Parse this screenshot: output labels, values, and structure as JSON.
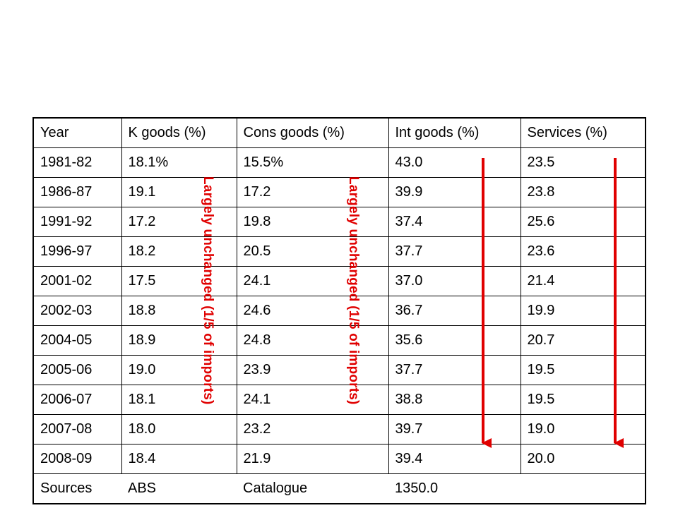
{
  "table": {
    "headers": [
      "Year",
      "K goods (%)",
      "Cons goods (%)",
      "Int goods (%)",
      "Services (%)"
    ],
    "rows": [
      [
        "1981-82",
        "18.1%",
        "15.5%",
        "43.0",
        "23.5"
      ],
      [
        "1986-87",
        "19.1",
        "17.2",
        "39.9",
        "23.8"
      ],
      [
        "1991-92",
        "17.2",
        "19.8",
        "37.4",
        "25.6"
      ],
      [
        "1996-97",
        "18.2",
        "20.5",
        "37.7",
        "23.6"
      ],
      [
        "2001-02",
        "17.5",
        "24.1",
        "37.0",
        "21.4"
      ],
      [
        "2002-03",
        "18.8",
        "24.6",
        "36.7",
        "19.9"
      ],
      [
        "2004-05",
        "18.9",
        "24.8",
        "35.6",
        "20.7"
      ],
      [
        "2005-06",
        "19.0",
        "23.9",
        "37.7",
        "19.5"
      ],
      [
        "2006-07",
        "18.1",
        "24.1",
        "38.8",
        "19.5"
      ],
      [
        "2007-08",
        "18.0",
        "23.2",
        "39.7",
        "19.0"
      ],
      [
        "2008-09",
        "18.4",
        "21.9",
        "39.4",
        "20.0"
      ]
    ],
    "footer": [
      "Sources",
      "ABS",
      "Catalogue",
      "1350.0",
      ""
    ]
  },
  "annotations": {
    "k_goods_note": "Largely unchanged (1/5 of imports)",
    "cons_goods_note": "Largely unchanged (1/5 of imports)"
  },
  "colors": {
    "annotation": "#e00000",
    "arrow": "#e00000",
    "border": "#000000"
  }
}
